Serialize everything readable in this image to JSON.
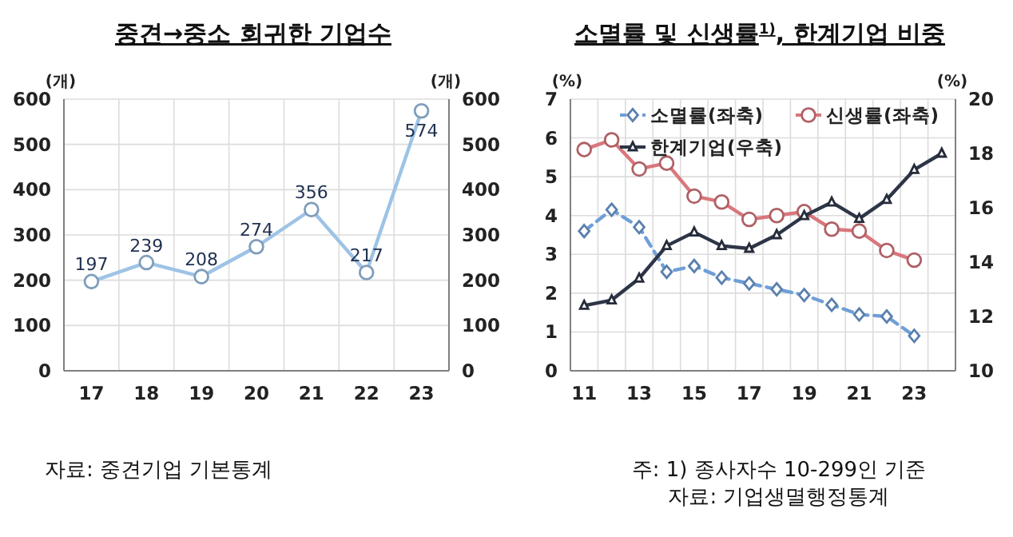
{
  "chart_data": [
    {
      "type": "line",
      "title": "중견→중소 회귀한 기업수",
      "ylabel": "(개)",
      "y2label": "(개)",
      "categories": [
        "17",
        "18",
        "19",
        "20",
        "21",
        "22",
        "23"
      ],
      "series": [
        {
          "color": "#9dc3e6",
          "values": [
            197,
            239,
            208,
            274,
            356,
            217,
            574
          ]
        }
      ],
      "ylim": [
        0,
        600
      ],
      "yticks": [
        0,
        100,
        200,
        300,
        400,
        500,
        600
      ],
      "y2lim": [
        0,
        600
      ],
      "y2ticks": [
        0,
        100,
        200,
        300,
        400,
        500,
        600
      ],
      "grid": true,
      "marker": "circle",
      "line_style": "solid",
      "data_labels": true,
      "legend": false,
      "annotations": [
        "자료: 중견기업 기본통계"
      ]
    },
    {
      "type": "line",
      "title": "소멸률 및 신생률$^{1)}$, 한계기업 비중",
      "ylabel": "(%)",
      "y2label": "(%)",
      "categories": [
        "11",
        null,
        "13",
        null,
        "15",
        null,
        "17",
        null,
        "19",
        null,
        "21",
        null,
        "23",
        null
      ],
      "series": [
        {
          "name": "소멸률(좌축)",
          "color": "#6f9fd8",
          "marker": "diamond",
          "line_style": "dashed",
          "values": [
            3.6,
            4.15,
            3.7,
            2.55,
            2.7,
            2.4,
            2.25,
            2.1,
            1.95,
            1.7,
            1.45,
            1.4,
            0.9,
            null
          ]
        },
        {
          "name": "신생률(좌축)",
          "color": "#d9777d",
          "marker": "circle",
          "line_style": "solid",
          "values": [
            5.7,
            5.95,
            5.2,
            5.35,
            4.5,
            4.35,
            3.9,
            4.0,
            4.1,
            3.65,
            3.6,
            3.1,
            2.85,
            null
          ]
        },
        {
          "name": "한계기업(우축)",
          "color": "#2e3547",
          "marker": "triangle",
          "line_style": "solid",
          "axis": "y2",
          "values": [
            12.4,
            12.6,
            13.4,
            14.6,
            15.1,
            14.6,
            14.5,
            15.0,
            15.7,
            16.2,
            15.6,
            16.3,
            17.4,
            18.0
          ]
        }
      ],
      "ylim": [
        0,
        7
      ],
      "yticks": [
        0,
        1,
        2,
        3,
        4,
        5,
        6,
        7
      ],
      "y2lim": [
        10,
        20
      ],
      "y2ticks": [
        10,
        12,
        14,
        16,
        18,
        20
      ],
      "grid": true,
      "legend": "top right",
      "annotations": [
        "주: 1) 종사자수 10-299인 기준",
        "자료: 기업생멸행정통계"
      ]
    }
  ]
}
